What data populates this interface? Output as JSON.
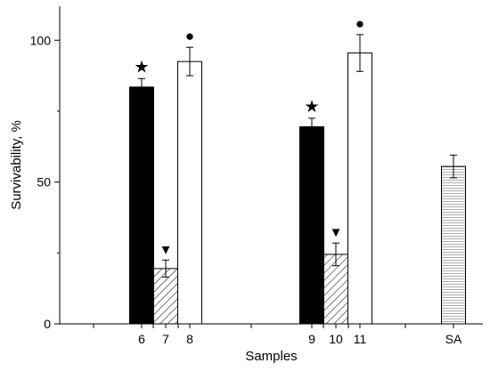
{
  "chart_data": {
    "type": "bar",
    "title": "",
    "xlabel": "Samples",
    "ylabel": "Survivability, %",
    "ylim": [
      0,
      112
    ],
    "yticks": [
      0,
      50,
      100
    ],
    "grid": false,
    "legend": "none",
    "categories": [
      "6",
      "7",
      "8",
      "9",
      "10",
      "11",
      "SA"
    ],
    "values": [
      83.5,
      19.5,
      92.5,
      69.5,
      24.5,
      95.5,
      55.5
    ],
    "errors": [
      3.0,
      3.0,
      5.0,
      3.0,
      4.0,
      6.5,
      4.0
    ],
    "fills": [
      "solid",
      "hatch",
      "white",
      "solid",
      "hatch",
      "white",
      "lines"
    ],
    "markers": [
      {
        "category": "6",
        "symbol": "★",
        "name": "star"
      },
      {
        "category": "7",
        "symbol": "▼",
        "name": "triangle-down"
      },
      {
        "category": "8",
        "symbol": "●",
        "name": "circle"
      },
      {
        "category": "9",
        "symbol": "★",
        "name": "star"
      },
      {
        "category": "10",
        "symbol": "▼",
        "name": "triangle-down"
      },
      {
        "category": "11",
        "symbol": "●",
        "name": "circle"
      }
    ],
    "colors": {
      "solid": "#000000",
      "stroke": "#000000",
      "background": "#ffffff",
      "lines": "#9a9a9a"
    }
  }
}
